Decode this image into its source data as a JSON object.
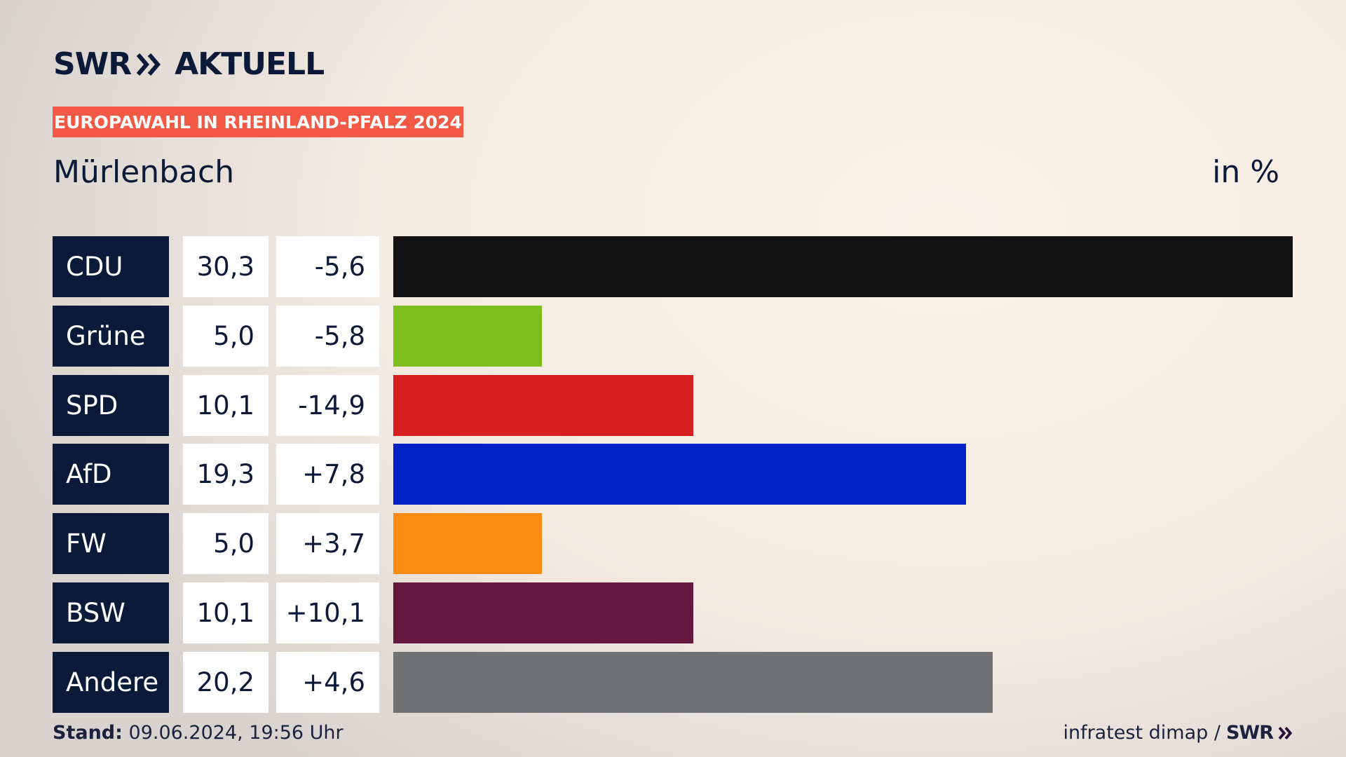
{
  "brand": {
    "name": "SWR",
    "product": "AKTUELL"
  },
  "chart_data": {
    "type": "bar",
    "badge": "EUROPAWAHL IN RHEINLAND-PFALZ 2024",
    "title": "Mürlenbach",
    "unit": "in %",
    "categories": [
      "CDU",
      "Grüne",
      "SPD",
      "AfD",
      "FW",
      "BSW",
      "Andere"
    ],
    "values": [
      30.3,
      5.0,
      10.1,
      19.3,
      5.0,
      10.1,
      20.2
    ],
    "value_labels": [
      "30,3",
      "5,0",
      "10,1",
      "19,3",
      "5,0",
      "10,1",
      "20,2"
    ],
    "changes": [
      -5.6,
      -5.8,
      -14.9,
      7.8,
      3.7,
      10.1,
      4.6
    ],
    "change_labels": [
      "-5,6",
      "-5,8",
      "-14,9",
      "+7,8",
      "+3,7",
      "+10,1",
      "+4,6"
    ],
    "colors": [
      "#121212",
      "#7dbd1e",
      "#d61f1f",
      "#0022c8",
      "#fa8c14",
      "#66173f",
      "#707173"
    ]
  },
  "footer": {
    "stand_label": "Stand:",
    "stand_value": "09.06.2024, 19:56 Uhr",
    "source": "infratest dimap /",
    "source_logo": "SWR"
  }
}
